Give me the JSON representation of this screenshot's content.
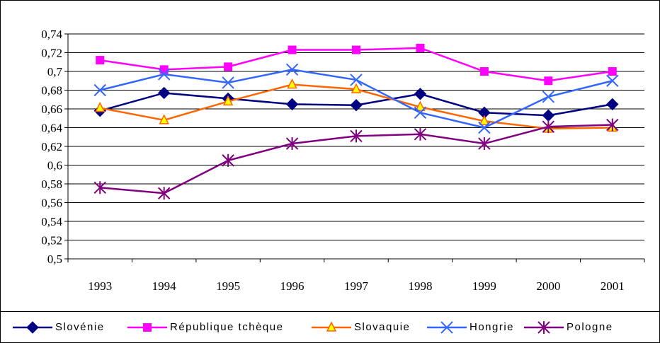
{
  "chart_data": {
    "type": "line",
    "categories": [
      "1993",
      "1994",
      "1995",
      "1996",
      "1997",
      "1998",
      "1999",
      "2000",
      "2001"
    ],
    "series": [
      {
        "name": "Slovénie",
        "color": "#000080",
        "marker": "diamond",
        "values": [
          0.658,
          0.677,
          0.671,
          0.665,
          0.664,
          0.676,
          0.656,
          0.653,
          0.665
        ]
      },
      {
        "name": "République tchèque",
        "color": "#FF00FF",
        "marker": "square",
        "values": [
          0.712,
          0.702,
          0.705,
          0.723,
          0.723,
          0.725,
          0.7,
          0.69,
          0.7
        ]
      },
      {
        "name": "Slovaquie",
        "color": "#FF6600",
        "marker": "triangle",
        "values": [
          0.661,
          0.648,
          0.668,
          0.686,
          0.681,
          0.662,
          0.647,
          0.639,
          0.64
        ]
      },
      {
        "name": "Hongrie",
        "color": "#3366FF",
        "marker": "x",
        "values": [
          0.68,
          0.697,
          0.688,
          0.702,
          0.691,
          0.656,
          0.64,
          0.673,
          0.69
        ]
      },
      {
        "name": "Pologne",
        "color": "#800080",
        "marker": "star",
        "values": [
          0.576,
          0.57,
          0.605,
          0.623,
          0.631,
          0.633,
          0.623,
          0.641,
          0.643
        ]
      }
    ],
    "ylim": [
      0.5,
      0.74
    ],
    "yticks": [
      {
        "value": 0.5,
        "label": "0,5"
      },
      {
        "value": 0.52,
        "label": "0,52"
      },
      {
        "value": 0.54,
        "label": "0,54"
      },
      {
        "value": 0.56,
        "label": "0,56"
      },
      {
        "value": 0.58,
        "label": "0,58"
      },
      {
        "value": 0.6,
        "label": "0,6"
      },
      {
        "value": 0.62,
        "label": "0,62"
      },
      {
        "value": 0.64,
        "label": "0,64"
      },
      {
        "value": 0.66,
        "label": "0,66"
      },
      {
        "value": 0.68,
        "label": "0,68"
      },
      {
        "value": 0.7,
        "label": "0,7"
      },
      {
        "value": 0.72,
        "label": "0,72"
      },
      {
        "value": 0.74,
        "label": "0,74"
      }
    ],
    "grid": true,
    "legend": "bottom"
  }
}
